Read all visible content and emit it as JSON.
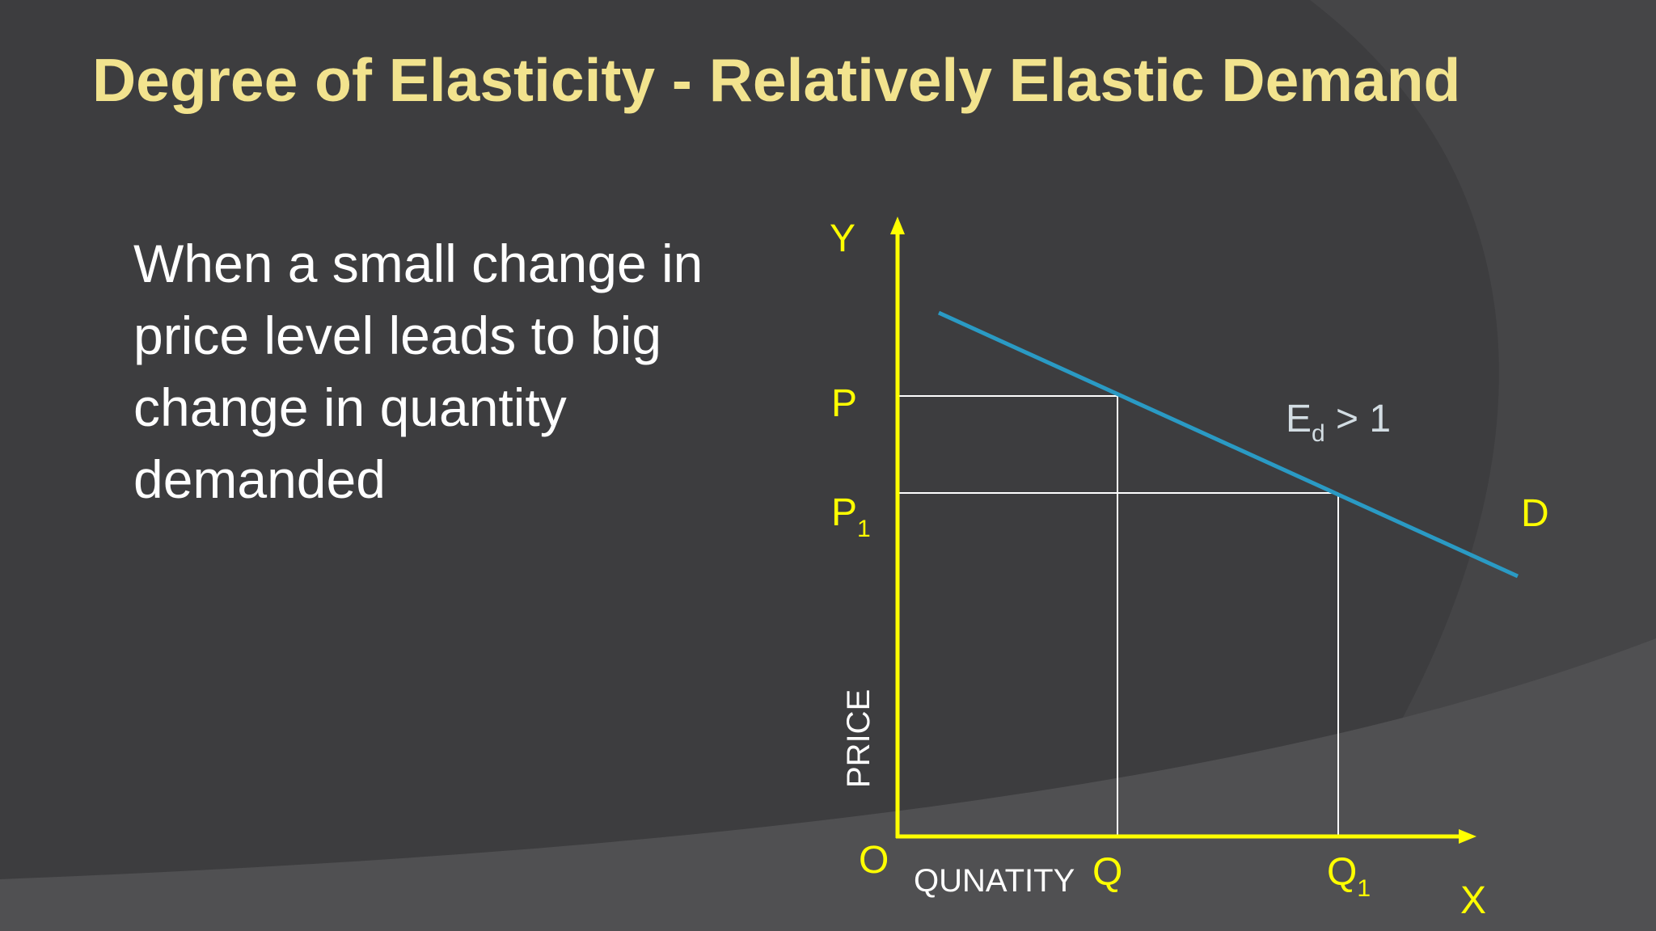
{
  "slide": {
    "title": "Degree of Elasticity  - Relatively Elastic Demand",
    "body": "When a small  change in price level leads to big change in quantity demanded"
  },
  "diagram": {
    "y_axis_letter": "Y",
    "x_axis_letter": "X",
    "origin": "O",
    "y_axis_title": "PRICE",
    "x_axis_title": "QUNATITY",
    "price_labels": [
      {
        "main": "P",
        "sub": ""
      },
      {
        "main": "P",
        "sub": "1"
      }
    ],
    "quantity_labels": [
      {
        "main": "Q",
        "sub": ""
      },
      {
        "main": "Q",
        "sub": "1"
      }
    ],
    "curve_label": "D",
    "elasticity_label": {
      "main": "E",
      "sub": "d",
      "rest": " > 1"
    }
  },
  "colors": {
    "background": "#3d3d3f",
    "title": "#f2e38e",
    "axes": "#ffff00",
    "demand_curve": "#2a9ac4",
    "guide_lines": "#ffffff"
  }
}
